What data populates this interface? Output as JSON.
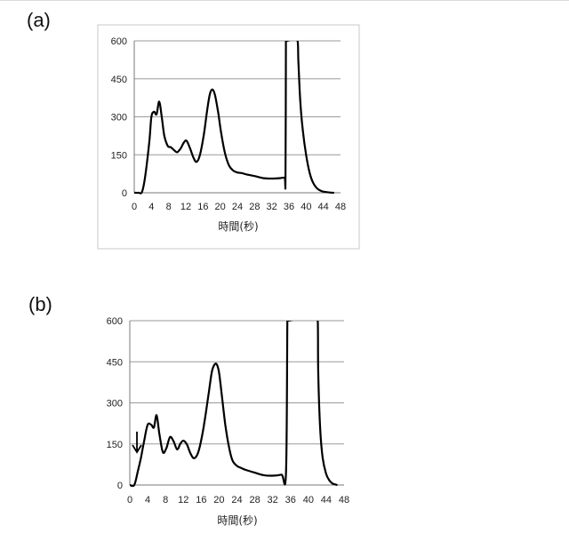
{
  "panels": [
    {
      "label": "(a)",
      "xlabel": "時間(秒)"
    },
    {
      "label": "(b)",
      "xlabel": "時間(秒)"
    }
  ],
  "chart_data": [
    {
      "type": "line",
      "panel": "(a)",
      "title": "",
      "xlabel": "時間(秒)",
      "ylabel": "",
      "xlim": [
        0,
        48
      ],
      "ylim": [
        0,
        600
      ],
      "xticks": [
        0,
        4,
        8,
        12,
        16,
        20,
        24,
        28,
        32,
        36,
        40,
        44,
        48
      ],
      "yticks": [
        0,
        150,
        300,
        450,
        600
      ],
      "grid": true,
      "line_color": "#000000",
      "series": [
        {
          "x": [
            0,
            1,
            1.8,
            2.5,
            3.5,
            4,
            4.6,
            5.2,
            5.8,
            6.4,
            7,
            7.8,
            8.5,
            9.3,
            10,
            10.8,
            11.6,
            12.2,
            13,
            13.8,
            14.5,
            15.3,
            16.2,
            17,
            17.6,
            18.2,
            18.8,
            19.5,
            20.2,
            21,
            22,
            23,
            24,
            25,
            26,
            28,
            30,
            32,
            34,
            35,
            35.2,
            35.3,
            35.4,
            38,
            38.2,
            38.6,
            39.2,
            40,
            40.8,
            41.6,
            42.5,
            43.5,
            44.5,
            45.5,
            46.5
          ],
          "y": [
            0,
            0,
            3,
            60,
            200,
            300,
            320,
            310,
            360,
            300,
            225,
            185,
            180,
            168,
            160,
            175,
            200,
            205,
            175,
            138,
            122,
            150,
            230,
            330,
            390,
            408,
            385,
            320,
            240,
            165,
            110,
            88,
            80,
            78,
            73,
            66,
            58,
            56,
            58,
            60,
            55,
            600,
            600,
            600,
            520,
            370,
            250,
            150,
            80,
            40,
            18,
            7,
            3,
            1,
            0
          ]
        }
      ]
    },
    {
      "type": "line",
      "panel": "(b)",
      "title": "",
      "xlabel": "時間(秒)",
      "ylabel": "",
      "xlim": [
        0,
        48
      ],
      "ylim": [
        0,
        600
      ],
      "xticks": [
        0,
        4,
        8,
        12,
        16,
        20,
        24,
        28,
        32,
        36,
        40,
        44,
        48
      ],
      "yticks": [
        0,
        150,
        300,
        450,
        600
      ],
      "grid": true,
      "line_color": "#000000",
      "annotation": {
        "type": "down-arrow",
        "x": 1.6,
        "y_from": 195,
        "y_to": 120
      },
      "series": [
        {
          "x": [
            0,
            1,
            1.8,
            2.5,
            3.2,
            4,
            4.8,
            5.4,
            6,
            6.6,
            7.4,
            8.2,
            9,
            9.8,
            10.6,
            11.3,
            12,
            12.8,
            13.6,
            14.4,
            15.3,
            16.2,
            17,
            17.8,
            18.4,
            19,
            19.5,
            20,
            20.6,
            21.4,
            22.2,
            23,
            24,
            25,
            26,
            28,
            30,
            32,
            34,
            35,
            35.3,
            35.4,
            42.1,
            42.2,
            42.6,
            43.2,
            44,
            44.8,
            45.5,
            46.5
          ],
          "y": [
            0,
            0,
            50,
            100,
            160,
            220,
            220,
            210,
            255,
            190,
            120,
            135,
            175,
            160,
            130,
            150,
            162,
            148,
            115,
            98,
            118,
            180,
            260,
            350,
            415,
            440,
            440,
            410,
            330,
            220,
            140,
            90,
            70,
            62,
            55,
            45,
            36,
            34,
            38,
            45,
            600,
            600,
            600,
            420,
            220,
            100,
            40,
            15,
            5,
            0
          ]
        }
      ]
    }
  ]
}
